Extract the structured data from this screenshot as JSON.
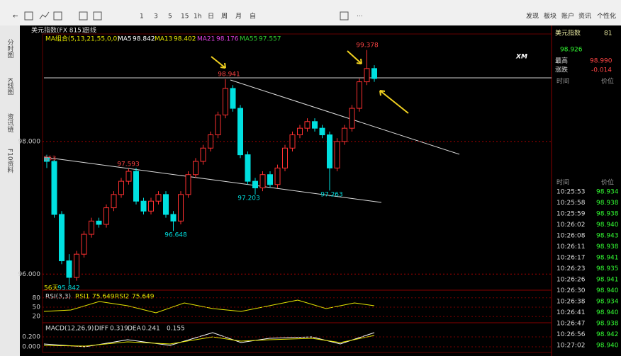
{
  "toolbar": {
    "periods": [
      "1",
      "3",
      "5",
      "15",
      "1h",
      "日",
      "周",
      "月",
      "自"
    ],
    "right_menu": [
      "发现",
      "板块",
      "账户",
      "资讯",
      "个性化"
    ]
  },
  "side_tabs": [
    "分时图",
    "K线图",
    "资讯链",
    "F10资料"
  ],
  "chart": {
    "title": "美元指数(FX 8151)",
    "period": "日线",
    "ma_title": "MA组合(5,13,21,55,0,0)",
    "ma": [
      {
        "name": "MA5",
        "value": 98.842,
        "color": "#ffffff"
      },
      {
        "name": "MA13",
        "value": 98.402,
        "color": "#e8e800"
      },
      {
        "name": "MA21",
        "value": 98.176,
        "color": "#e040e0"
      },
      {
        "name": "MA55",
        "value": 97.557,
        "color": "#30d030"
      }
    ],
    "logo": "XM",
    "ylim": [
      95.8,
      99.6
    ],
    "yticks": [
      {
        "value": 96,
        "label": "96.000"
      },
      {
        "value": 98,
        "label": "98.000"
      }
    ],
    "up_color": "#ff3030",
    "down_color": "#00e0e0",
    "candles": [
      [
        97.75,
        97.8,
        97.6,
        97.7
      ],
      [
        97.7,
        97.72,
        96.85,
        96.9
      ],
      [
        96.9,
        96.95,
        96.15,
        96.2
      ],
      [
        96.2,
        96.3,
        95.84,
        95.95
      ],
      [
        95.95,
        96.35,
        95.9,
        96.3
      ],
      [
        96.3,
        96.65,
        96.25,
        96.6
      ],
      [
        96.6,
        96.85,
        96.55,
        96.8
      ],
      [
        96.8,
        96.85,
        96.7,
        96.75
      ],
      [
        96.75,
        97.05,
        96.7,
        97.0
      ],
      [
        97.0,
        97.25,
        96.95,
        97.2
      ],
      [
        97.2,
        97.45,
        97.15,
        97.4
      ],
      [
        97.4,
        97.59,
        97.35,
        97.55
      ],
      [
        97.55,
        97.6,
        97.05,
        97.1
      ],
      [
        97.1,
        97.15,
        96.9,
        96.95
      ],
      [
        96.95,
        97.15,
        96.9,
        97.1
      ],
      [
        97.1,
        97.25,
        97.05,
        97.2
      ],
      [
        97.2,
        97.25,
        96.85,
        96.9
      ],
      [
        96.9,
        96.95,
        96.65,
        96.8
      ],
      [
        96.8,
        97.25,
        96.75,
        97.2
      ],
      [
        97.2,
        97.55,
        97.15,
        97.5
      ],
      [
        97.5,
        97.75,
        97.45,
        97.7
      ],
      [
        97.7,
        97.95,
        97.65,
        97.9
      ],
      [
        97.9,
        98.15,
        97.85,
        98.1
      ],
      [
        98.1,
        98.45,
        98.05,
        98.4
      ],
      [
        98.4,
        98.94,
        98.35,
        98.8
      ],
      [
        98.8,
        98.85,
        98.45,
        98.5
      ],
      [
        98.5,
        98.55,
        97.75,
        97.8
      ],
      [
        97.8,
        97.85,
        97.35,
        97.4
      ],
      [
        97.4,
        97.45,
        97.2,
        97.3
      ],
      [
        97.3,
        97.55,
        97.25,
        97.5
      ],
      [
        97.5,
        97.55,
        97.3,
        97.35
      ],
      [
        97.35,
        97.65,
        97.3,
        97.6
      ],
      [
        97.6,
        97.95,
        97.55,
        97.9
      ],
      [
        97.9,
        98.15,
        97.85,
        98.1
      ],
      [
        98.1,
        98.25,
        98.05,
        98.2
      ],
      [
        98.2,
        98.35,
        98.15,
        98.3
      ],
      [
        98.3,
        98.35,
        98.15,
        98.2
      ],
      [
        98.2,
        98.25,
        98.05,
        98.1
      ],
      [
        98.1,
        98.15,
        97.26,
        97.6
      ],
      [
        97.6,
        98.05,
        97.55,
        98.0
      ],
      [
        98.0,
        98.25,
        97.95,
        98.2
      ],
      [
        98.2,
        98.55,
        98.15,
        98.5
      ],
      [
        98.5,
        98.95,
        98.45,
        98.9
      ],
      [
        98.9,
        99.38,
        98.85,
        99.1
      ],
      [
        99.1,
        99.15,
        98.9,
        98.95
      ]
    ],
    "price_labels": [
      99.378,
      98.941,
      97.593,
      97.203,
      97.263,
      96.648,
      95.842
    ],
    "left_label": "853",
    "days_label": "56天"
  },
  "rsi": {
    "title": "RSI(3,3)",
    "lines": [
      {
        "name": "RSI1",
        "value": 75.649
      },
      {
        "name": "RSI2",
        "value": 75.649
      }
    ],
    "yticks": [
      80,
      50,
      20
    ]
  },
  "macd": {
    "title": "MACD(12,26,9)",
    "lines": [
      {
        "name": "DIFF",
        "value": 0.319
      },
      {
        "name": "DEA",
        "value": 0.241
      }
    ],
    "macd_value": 0.155,
    "yticks": [
      {
        "value": 0.2,
        "label": "0.200"
      },
      {
        "value": 0,
        "label": "0.000"
      }
    ]
  },
  "quote": {
    "name": "美元指数",
    "code": "81",
    "price": "98.926",
    "high_label": "最高",
    "high": "98.990",
    "change_label": "涨跌",
    "change": "-0.014",
    "time_header": "时间",
    "price_header": "价位"
  },
  "trades": {
    "time_header": "时间",
    "price_header": "价位",
    "rows": [
      [
        "10:25:53",
        "98.934"
      ],
      [
        "10:25:58",
        "98.938"
      ],
      [
        "10:25:59",
        "98.938"
      ],
      [
        "10:26:02",
        "98.940"
      ],
      [
        "10:26:08",
        "98.943"
      ],
      [
        "10:26:11",
        "98.938"
      ],
      [
        "10:26:17",
        "98.941"
      ],
      [
        "10:26:23",
        "98.935"
      ],
      [
        "10:26:26",
        "98.941"
      ],
      [
        "10:26:30",
        "98.940"
      ],
      [
        "10:26:38",
        "98.934"
      ],
      [
        "10:26:41",
        "98.940"
      ],
      [
        "10:26:47",
        "98.938"
      ],
      [
        "10:26:56",
        "98.942"
      ],
      [
        "10:27:02",
        "98.940"
      ]
    ]
  }
}
